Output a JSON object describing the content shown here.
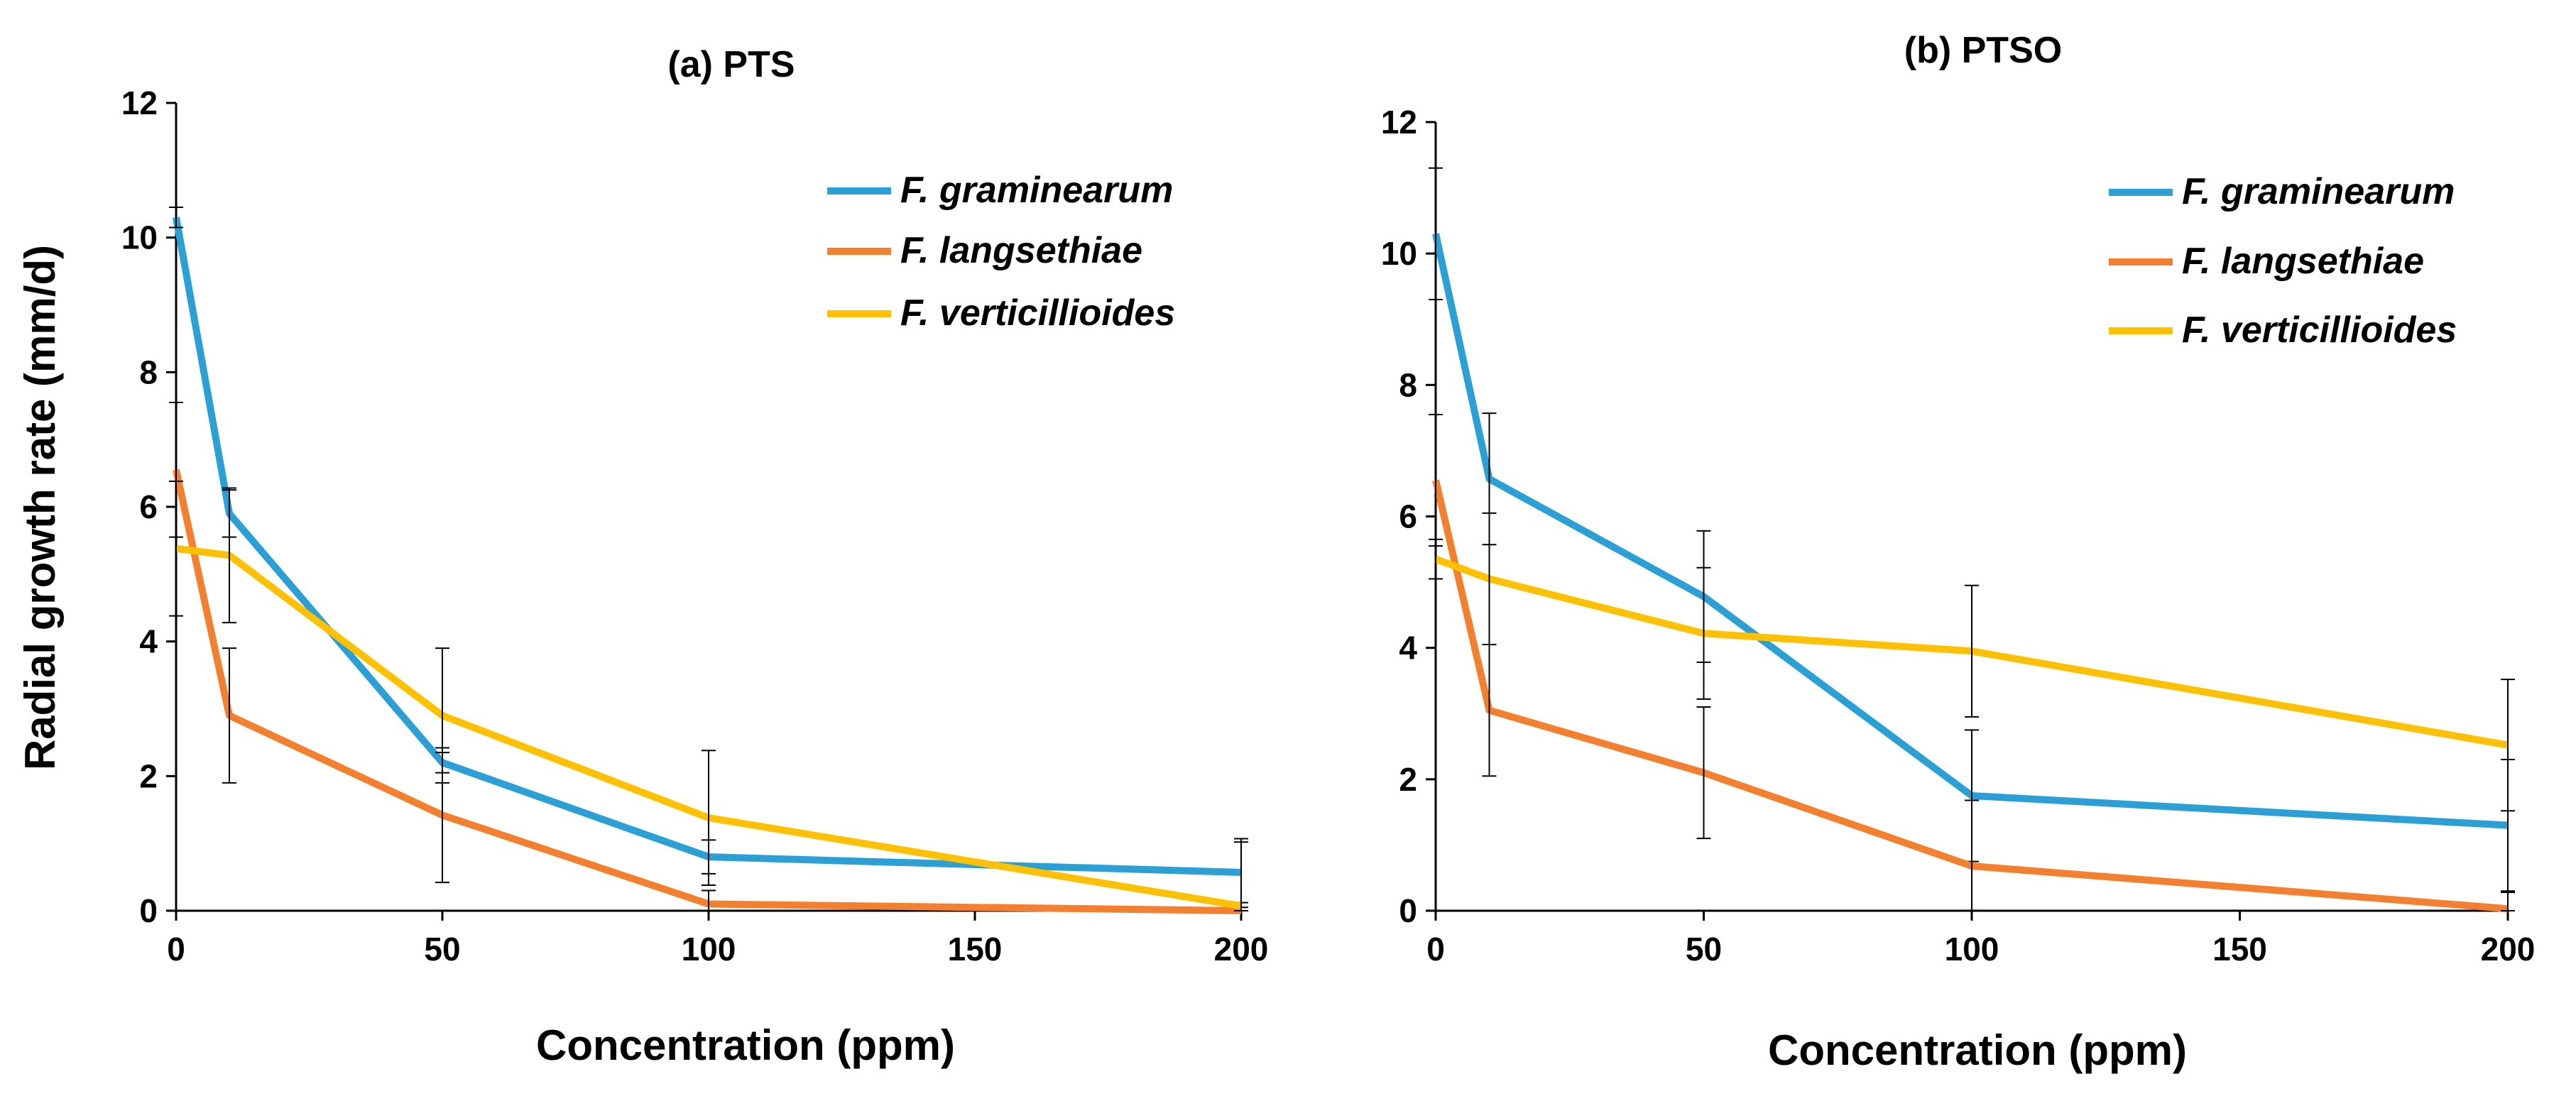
{
  "chart_data": [
    {
      "type": "line",
      "title": "(a) PTS",
      "xlabel": "Concentration (ppm)",
      "ylabel": "Radial growth rate (mm/d)",
      "xlim": [
        0,
        200
      ],
      "ylim": [
        0,
        12
      ],
      "xticks": [
        0,
        50,
        100,
        150,
        200
      ],
      "yticks": [
        0,
        2,
        4,
        6,
        8,
        10,
        12
      ],
      "x": [
        0,
        10,
        50,
        100,
        200
      ],
      "legend_position": "top-right",
      "series": [
        {
          "name": "F. graminearum",
          "color": "#2aa0d6",
          "values": [
            10.3,
            5.9,
            2.2,
            0.8,
            0.57
          ],
          "errors": [
            0.15,
            0.35,
            0.15,
            0.25,
            0.45
          ]
        },
        {
          "name": "F. langsethiae",
          "color": "#f47f2e",
          "values": [
            6.55,
            2.9,
            1.42,
            0.1,
            0.0
          ],
          "errors": [
            1.0,
            1.0,
            1.0,
            0.2,
            0.05
          ]
        },
        {
          "name": "F. verticillioides",
          "color": "#ffc000",
          "values": [
            5.38,
            5.28,
            2.9,
            1.38,
            0.07
          ],
          "errors": [
            1.0,
            1.0,
            1.0,
            1.0,
            1.0
          ]
        }
      ]
    },
    {
      "type": "line",
      "title": "(b) PTSO",
      "xlabel": "Concentration (ppm)",
      "ylabel": "",
      "xlim": [
        0,
        200
      ],
      "ylim": [
        0,
        12
      ],
      "xticks": [
        0,
        50,
        100,
        150,
        200
      ],
      "yticks": [
        0,
        2,
        4,
        6,
        8,
        10,
        12
      ],
      "x": [
        0,
        10,
        50,
        100,
        200
      ],
      "legend_position": "top-right",
      "series": [
        {
          "name": "F. graminearum",
          "color": "#2aa0d6",
          "values": [
            10.3,
            6.57,
            4.78,
            1.75,
            1.3
          ],
          "errors": [
            1.0,
            1.0,
            1.0,
            1.0,
            1.0
          ]
        },
        {
          "name": "F. langsethiae",
          "color": "#f47f2e",
          "values": [
            6.55,
            3.05,
            2.1,
            0.68,
            0.03
          ],
          "errors": [
            1.0,
            1.0,
            1.0,
            1.0,
            0.25
          ]
        },
        {
          "name": "F. verticillioides",
          "color": "#ffc000",
          "values": [
            5.35,
            5.05,
            4.22,
            3.95,
            2.52
          ],
          "errors": [
            0.3,
            1.0,
            1.0,
            1.0,
            1.0
          ]
        }
      ]
    }
  ]
}
